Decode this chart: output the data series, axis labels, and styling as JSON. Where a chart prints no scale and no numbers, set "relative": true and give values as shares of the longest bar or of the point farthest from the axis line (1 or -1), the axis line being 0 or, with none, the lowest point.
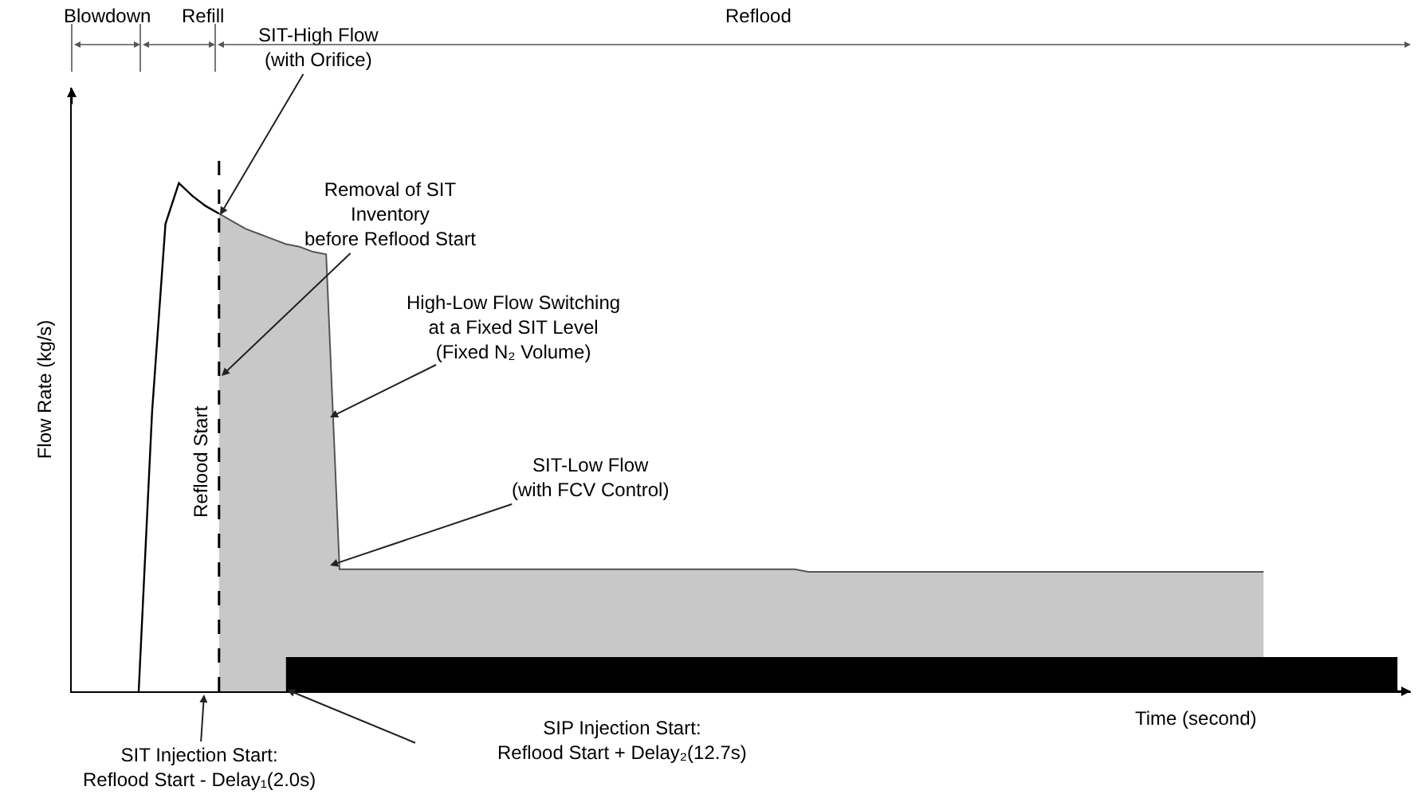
{
  "chart_data": {
    "type": "area",
    "relative": true,
    "xlabel": "Time (second)",
    "ylabel": "Flow Rate (kg/s)",
    "categories": [
      null,
      null,
      null,
      null,
      null,
      null,
      null,
      null,
      null,
      null,
      null,
      null,
      null,
      null,
      null,
      null,
      null,
      null,
      null,
      null,
      null,
      null,
      null,
      null,
      null,
      null,
      null,
      null,
      null,
      null,
      null,
      null,
      null,
      null,
      null,
      null,
      null,
      null,
      null,
      null,
      null,
      null,
      null,
      null,
      null,
      null,
      null,
      null,
      null,
      null,
      null,
      null,
      null,
      null,
      null,
      null,
      null,
      null,
      null,
      null,
      null,
      null,
      null,
      null,
      null,
      null,
      null,
      null,
      null,
      null,
      null,
      null,
      null,
      null,
      null,
      null,
      null,
      null,
      null,
      null,
      null,
      null,
      null,
      null,
      null,
      null,
      null,
      null,
      null,
      null,
      null,
      null,
      null,
      null,
      null,
      null,
      null,
      null,
      null,
      null,
      null
    ],
    "series": [
      {
        "type": "line",
        "color": "#000000",
        "values": [
          null,
          null,
          null,
          null,
          null,
          0,
          0.55,
          0.92,
          1.0,
          0.975,
          0.955,
          0.94,
          null,
          null,
          null,
          null,
          null,
          null,
          null,
          null,
          null,
          null,
          null,
          null,
          null,
          null,
          null,
          null,
          null,
          null,
          null,
          null,
          null,
          null,
          null,
          null,
          null,
          null,
          null,
          null,
          null,
          null,
          null,
          null,
          null,
          null,
          null,
          null,
          null,
          null,
          null,
          null,
          null,
          null,
          null,
          null,
          null,
          null,
          null,
          null,
          null,
          null,
          null,
          null,
          null,
          null,
          null,
          null,
          null,
          null,
          null,
          null,
          null,
          null,
          null,
          null,
          null,
          null,
          null,
          null,
          null,
          null,
          null,
          null,
          null,
          null,
          null,
          null,
          null,
          null,
          null,
          null,
          null,
          null,
          null,
          null,
          null,
          null,
          null,
          null,
          null
        ]
      },
      {
        "color": "#c8c8c8",
        "values": [
          null,
          null,
          null,
          null,
          null,
          null,
          null,
          null,
          null,
          null,
          null,
          0.94,
          0.925,
          0.91,
          0.9,
          0.89,
          0.88,
          0.875,
          0.865,
          0.86,
          0.24,
          0.24,
          0.24,
          0.24,
          0.24,
          0.24,
          0.24,
          0.24,
          0.24,
          0.24,
          0.24,
          0.24,
          0.24,
          0.24,
          0.24,
          0.24,
          0.24,
          0.24,
          0.24,
          0.24,
          0.24,
          0.24,
          0.24,
          0.24,
          0.24,
          0.24,
          0.24,
          0.24,
          0.24,
          0.24,
          0.24,
          0.24,
          0.24,
          0.24,
          0.24,
          0.235,
          0.235,
          0.235,
          0.235,
          0.235,
          0.235,
          0.235,
          0.235,
          0.235,
          0.235,
          0.235,
          0.235,
          0.235,
          0.235,
          0.235,
          0.235,
          0.235,
          0.235,
          0.235,
          0.235,
          0.235,
          0.235,
          0.235,
          0.235,
          0.235,
          0.235,
          0.235,
          0.235,
          0.235,
          0.235,
          0.235,
          0.235,
          0.235,
          0.235,
          0.235,
          null,
          null,
          null,
          null,
          null,
          null,
          null,
          null,
          null,
          null,
          null
        ]
      },
      {
        "color": "#000000",
        "values": [
          null,
          null,
          null,
          null,
          null,
          null,
          null,
          null,
          null,
          null,
          null,
          null,
          null,
          null,
          null,
          null,
          0.066,
          0.066,
          0.066,
          0.066,
          0.066,
          0.066,
          0.066,
          0.066,
          0.066,
          0.066,
          0.066,
          0.066,
          0.066,
          0.066,
          0.066,
          0.066,
          0.066,
          0.066,
          0.066,
          0.066,
          0.066,
          0.066,
          0.066,
          0.066,
          0.066,
          0.066,
          0.066,
          0.066,
          0.066,
          0.066,
          0.066,
          0.066,
          0.066,
          0.066,
          0.066,
          0.066,
          0.066,
          0.066,
          0.066,
          0.066,
          0.066,
          0.066,
          0.066,
          0.066,
          0.066,
          0.066,
          0.066,
          0.066,
          0.066,
          0.066,
          0.066,
          0.066,
          0.066,
          0.066,
          0.066,
          0.066,
          0.066,
          0.066,
          0.066,
          0.066,
          0.066,
          0.066,
          0.066,
          0.066,
          0.066,
          0.066,
          0.066,
          0.066,
          0.066,
          0.066,
          0.066,
          0.066,
          0.066,
          0.066,
          0.066,
          0.066,
          0.066,
          0.066,
          0.066,
          0.066,
          0.066,
          0.066,
          0.066,
          0.066,
          null
        ]
      }
    ],
    "annotations": [
      "SIT-High Flow\n(with Orifice)",
      "Removal of SIT\nInventory\nbefore Reflood Start",
      "High-Low Flow Switching\nat a Fixed SIT Level\n(Fixed N₂ Volume)",
      "SIT-Low Flow\n(with FCV Control)",
      "SIT Injection Start:\nReflood Start - Delay₁(2.0s)",
      "SIP Injection Start:\nReflood Start + Delay₂(12.7s)",
      "Blowdown",
      "Refill",
      "Reflood",
      "Reflood Start"
    ]
  }
}
